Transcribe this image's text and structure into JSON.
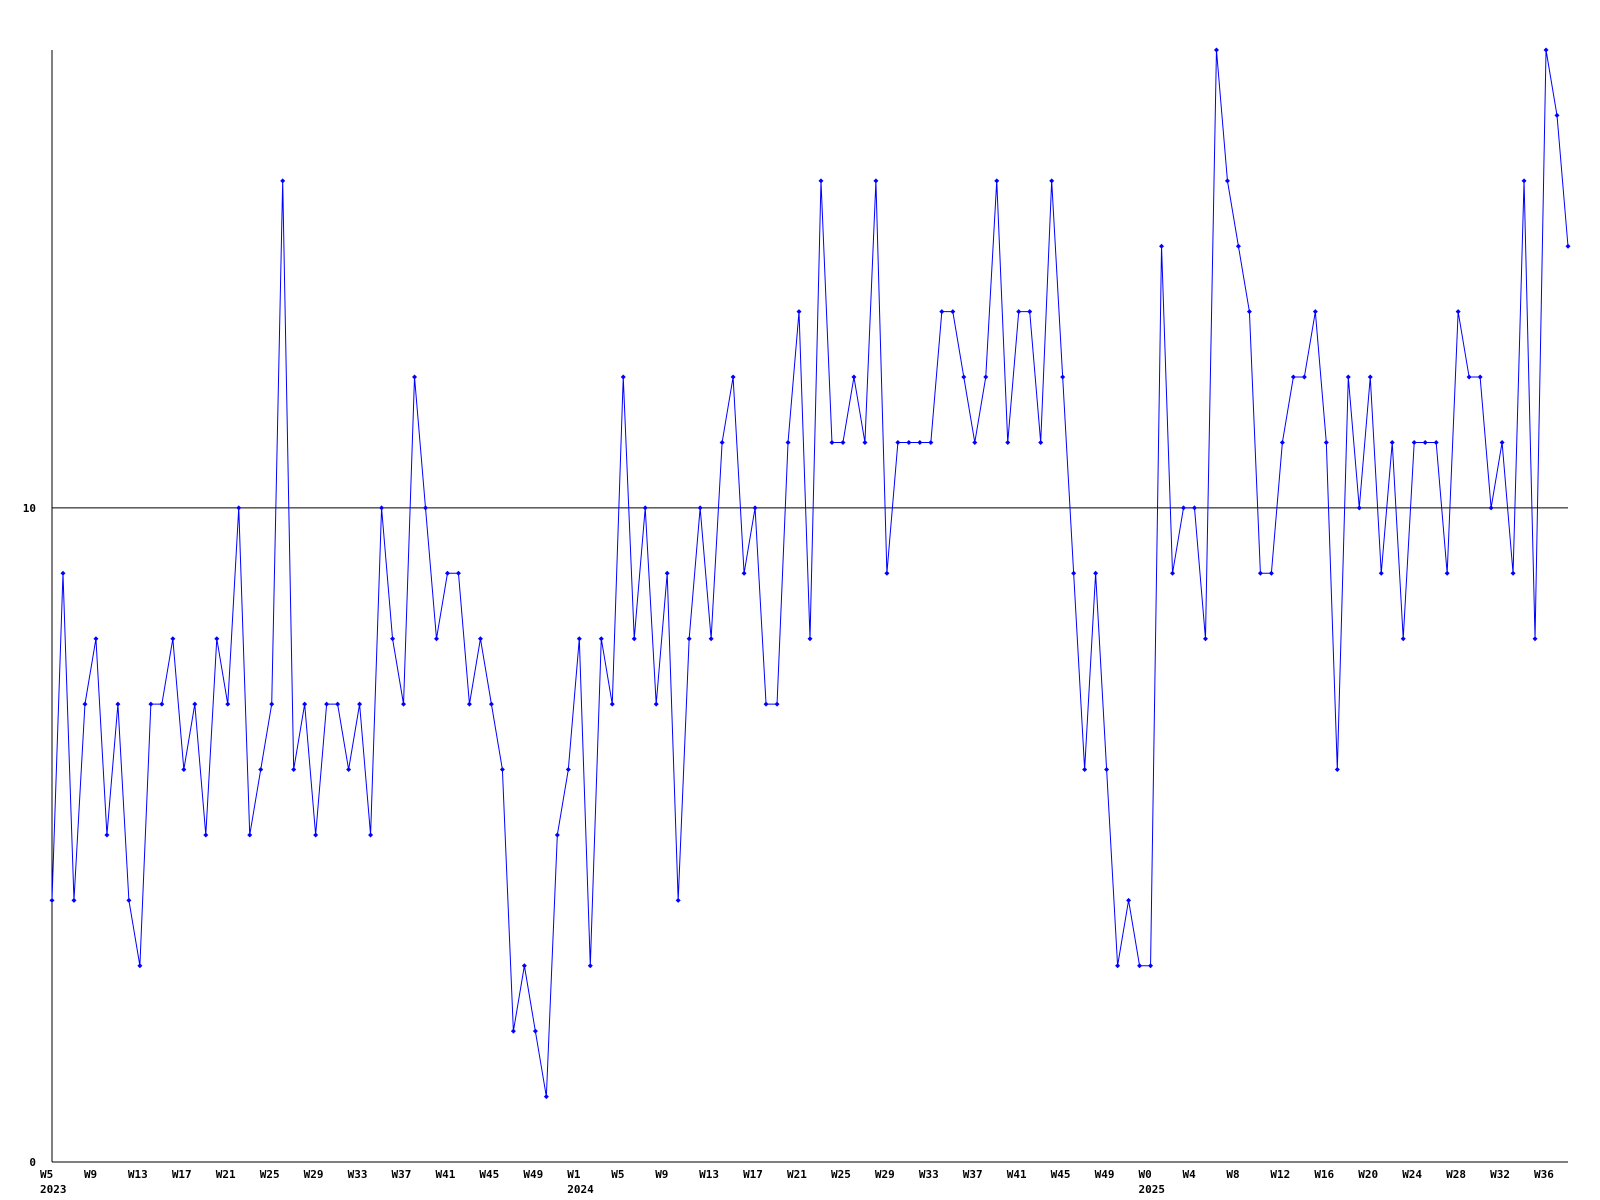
{
  "chart_data": {
    "type": "line",
    "categories": [
      "W5",
      null,
      null,
      null,
      "W9",
      null,
      null,
      null,
      "W13",
      null,
      null,
      null,
      "W17",
      null,
      null,
      null,
      "W21",
      null,
      null,
      null,
      "W25",
      null,
      null,
      null,
      "W29",
      null,
      null,
      null,
      "W33",
      null,
      null,
      null,
      "W37",
      null,
      null,
      null,
      "W41",
      null,
      null,
      null,
      "W45",
      null,
      null,
      null,
      "W49",
      null,
      null,
      null,
      "W1",
      null,
      null,
      null,
      "W5",
      null,
      null,
      null,
      "W9",
      null,
      null,
      null,
      "W13",
      null,
      null,
      null,
      "W17",
      null,
      null,
      null,
      "W21",
      null,
      null,
      null,
      "W25",
      null,
      null,
      null,
      "W29",
      null,
      null,
      null,
      "W33",
      null,
      null,
      null,
      "W37",
      null,
      null,
      null,
      "W41",
      null,
      null,
      null,
      "W45",
      null,
      null,
      null,
      "W49",
      null,
      null,
      null,
      "W0",
      null,
      null,
      null,
      "W4",
      null,
      null,
      null,
      "W8",
      null,
      null,
      null,
      "W12",
      null,
      null,
      null,
      "W16",
      null,
      null,
      null,
      "W20",
      null,
      null,
      null,
      "W24",
      null,
      null,
      null,
      "W28",
      null,
      null,
      null,
      "W32",
      null,
      null,
      null,
      "W36",
      null,
      null
    ],
    "years": [
      "2023",
      null,
      null,
      null,
      null,
      null,
      null,
      null,
      null,
      null,
      null,
      null,
      null,
      null,
      null,
      null,
      null,
      null,
      null,
      null,
      null,
      null,
      null,
      null,
      null,
      null,
      null,
      null,
      null,
      null,
      null,
      null,
      null,
      null,
      null,
      null,
      null,
      null,
      null,
      null,
      null,
      null,
      null,
      null,
      null,
      null,
      null,
      null,
      "2024",
      null,
      null,
      null,
      null,
      null,
      null,
      null,
      null,
      null,
      null,
      null,
      null,
      null,
      null,
      null,
      null,
      null,
      null,
      null,
      null,
      null,
      null,
      null,
      null,
      null,
      null,
      null,
      null,
      null,
      null,
      null,
      null,
      null,
      null,
      null,
      null,
      null,
      null,
      null,
      null,
      null,
      null,
      null,
      null,
      null,
      null,
      null,
      null,
      null,
      null,
      null,
      "2025",
      null,
      null,
      null,
      null,
      null,
      null,
      null,
      null,
      null,
      null,
      null,
      null,
      null,
      null,
      null,
      null,
      null,
      null,
      null,
      null,
      null,
      null,
      null,
      null,
      null,
      null,
      null,
      null,
      null,
      null,
      null,
      null,
      null,
      null,
      null,
      null,
      null
    ],
    "series": [
      {
        "color": "#0000ff",
        "values": [
          4,
          9,
          4,
          7,
          8,
          5,
          7,
          4,
          3,
          7,
          7,
          8,
          6,
          7,
          5,
          8,
          7,
          10,
          5,
          6,
          7,
          15,
          6,
          7,
          5,
          7,
          7,
          6,
          7,
          5,
          10,
          8,
          7,
          12,
          10,
          8,
          9,
          9,
          7,
          8,
          7,
          6,
          2,
          3,
          2,
          1,
          5,
          6,
          8,
          3,
          8,
          7,
          12,
          8,
          10,
          7,
          9,
          4,
          8,
          10,
          8,
          11,
          12,
          9,
          10,
          7,
          7,
          11,
          13,
          8,
          15,
          11,
          11,
          12,
          11,
          15,
          9,
          11,
          11,
          11,
          11,
          13,
          13,
          12,
          11,
          12,
          15,
          11,
          13,
          13,
          11,
          15,
          12,
          9,
          6,
          9,
          6,
          3,
          4,
          3,
          3,
          14,
          9,
          10,
          10,
          8,
          17,
          15,
          14,
          13,
          9,
          9,
          11,
          12,
          12,
          13,
          11,
          6,
          12,
          10,
          12,
          9,
          11,
          8,
          11,
          11,
          11,
          9,
          13,
          12,
          12,
          10,
          11,
          9,
          15,
          8,
          17,
          16,
          14
        ]
      }
    ],
    "ylim": [
      0,
      17
    ],
    "yticks": [
      0,
      10
    ],
    "grid": true
  }
}
